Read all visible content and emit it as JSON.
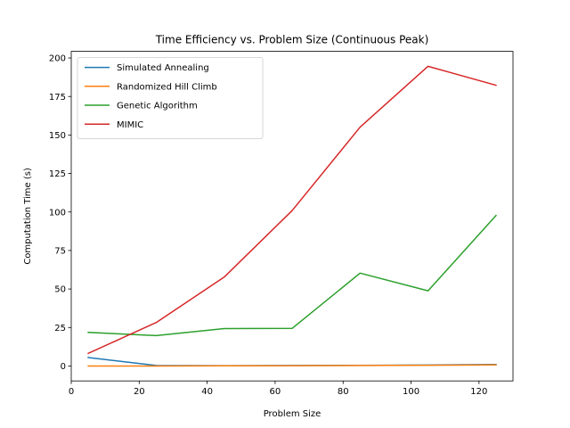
{
  "chart_data": {
    "type": "line",
    "title": "Time Efficiency vs. Problem Size (Continuous Peak)",
    "xlabel": "Problem Size",
    "ylabel": "Computation Time (s)",
    "xlim": [
      0,
      130
    ],
    "ylim": [
      -9.7,
      204.3
    ],
    "xticks": [
      0,
      20,
      40,
      60,
      80,
      100,
      120
    ],
    "yticks": [
      0,
      25,
      50,
      75,
      100,
      125,
      150,
      175,
      200
    ],
    "grid": false,
    "legend_position": "upper-left",
    "x": [
      5,
      25,
      45,
      65,
      85,
      105,
      125
    ],
    "series": [
      {
        "name": "Simulated Annealing",
        "color": "#1f77b4",
        "values": [
          5.5,
          0.3,
          0.2,
          0.3,
          0.4,
          0.6,
          1.0
        ]
      },
      {
        "name": "Randomized Hill Climb",
        "color": "#ff7f0e",
        "values": [
          0.0,
          0.0,
          0.1,
          0.2,
          0.3,
          0.5,
          0.7
        ]
      },
      {
        "name": "Genetic Algorithm",
        "color": "#2ca02c",
        "values": [
          21.8,
          19.7,
          24.3,
          24.4,
          60.3,
          48.8,
          97.7
        ]
      },
      {
        "name": "MIMIC",
        "color": "#d62728",
        "values": [
          8.2,
          28.2,
          57.7,
          100.9,
          155.1,
          194.6,
          182.3
        ]
      }
    ]
  }
}
